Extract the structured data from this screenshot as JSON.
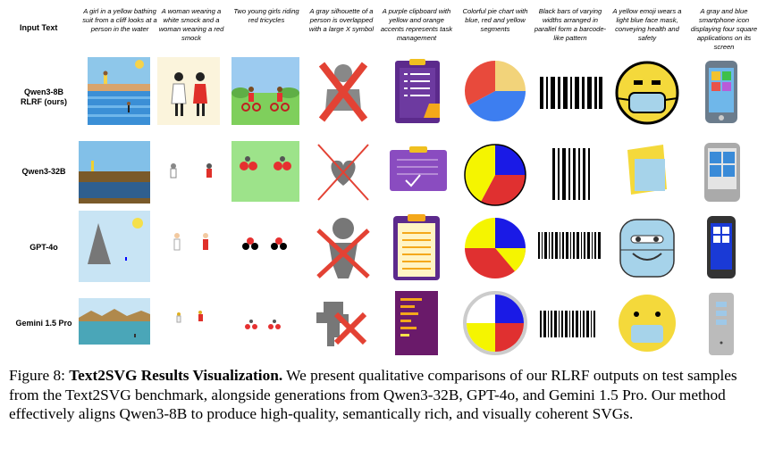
{
  "header": {
    "input_text_label": "Input Text"
  },
  "prompts": [
    "A girl in a yellow bathing suit from a cliff looks at a person in the water",
    "A woman wearing a white smock and a woman wearing a red smock",
    "Two young girls riding red tricycles",
    "A gray silhouette of a person is overlapped with a large X symbol",
    "A purple clipboard with yellow and orange accents represents task management",
    "Colorful pie chart with blue, red and yellow segments",
    "Black bars of varying widths arranged in parallel form a barcode-like pattern",
    "A yellow emoji wears a light blue face mask, conveying health and safety",
    "A gray and blue smartphone icon displaying four square applications on its screen"
  ],
  "rows": [
    {
      "label_line1": "Qwen3-8B",
      "label_line2": "RLRF (ours)"
    },
    {
      "label_line1": "Qwen3-32B",
      "label_line2": ""
    },
    {
      "label_line1": "GPT-4o",
      "label_line2": ""
    },
    {
      "label_line1": "Gemini 1.5 Pro",
      "label_line2": ""
    }
  ],
  "caption": {
    "prefix": "Figure 8: ",
    "title": "Text2SVG Results Visualization.",
    "body": " We present qualitative comparisons of our RLRF outputs on test samples from the Text2SVG benchmark, alongside generations from Qwen3-32B, GPT-4o, and Gemini 1.5 Pro. Our method effectively aligns Qwen3-8B to produce high-quality, semantically rich, and visually coherent SVGs."
  },
  "colors": {
    "red_x": "#e34234",
    "purple": "#5c2a8c",
    "pie_blue": "#1a1ae6",
    "pie_red": "#e03030",
    "pie_yellow": "#f5f500",
    "emoji_yellow": "#f4d93b",
    "mask_blue": "#a6d3ea"
  }
}
